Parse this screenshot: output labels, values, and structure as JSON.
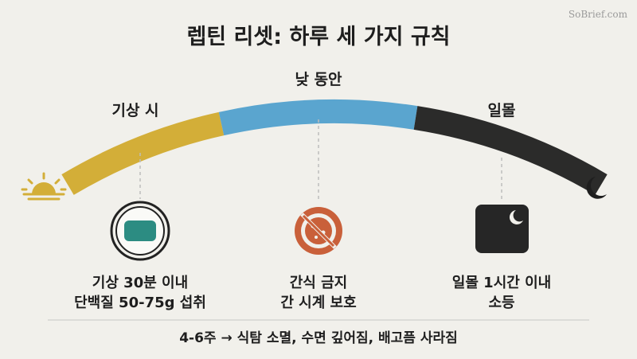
{
  "title": "렙틴 리셋: 하루 세 가지 규칙",
  "watermark": "SoBrief.com",
  "stages": [
    {
      "label": "기상 시",
      "details": [
        "기상 30분 이내",
        "단백질 50-75g 섭취"
      ]
    },
    {
      "label": "낮 동안",
      "details": [
        "간식 금지",
        "간 시계 보호"
      ]
    },
    {
      "label": "일몰",
      "details": [
        "일몰 1시간 이내",
        "소등"
      ]
    }
  ],
  "footer": "4-6주 → 식탐 소멸, 수면 깊어짐, 배고픔 사라짐"
}
